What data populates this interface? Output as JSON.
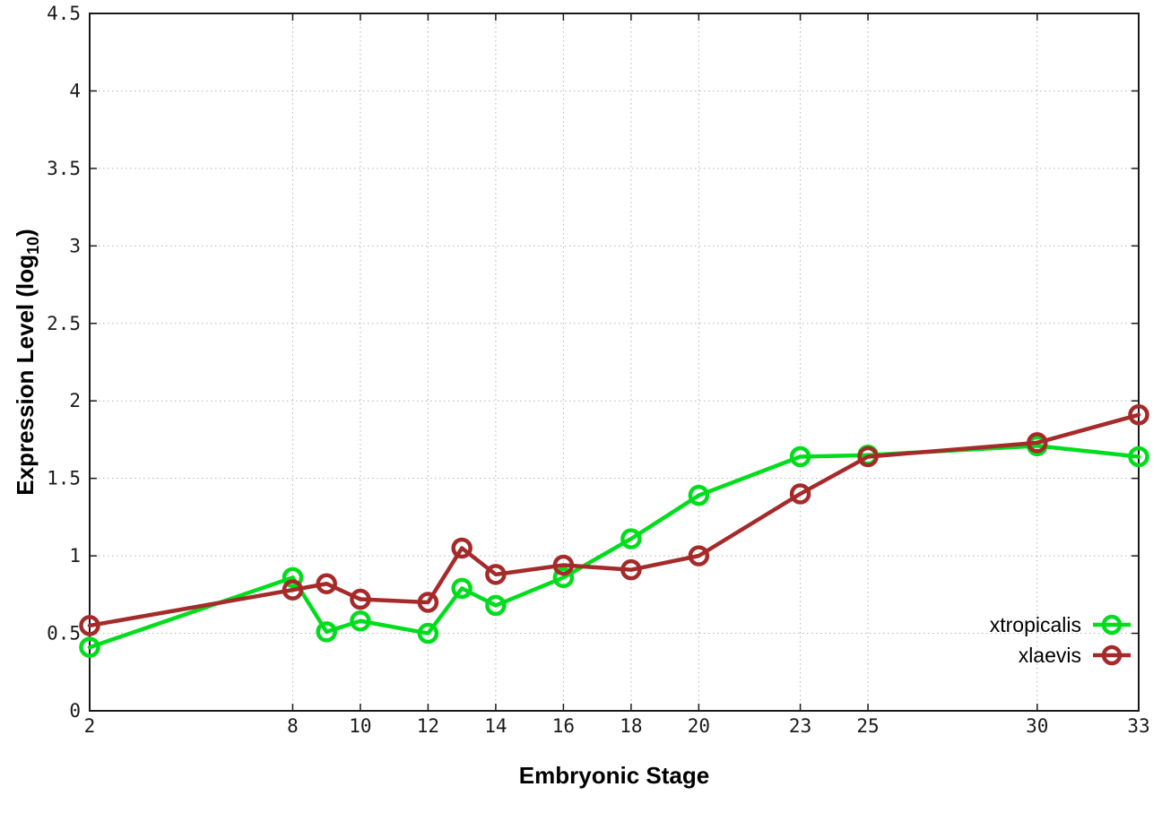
{
  "chart_data": {
    "type": "line",
    "title": "",
    "xlabel": "Embryonic Stage",
    "ylabel_main": "Expression Level (log",
    "ylabel_sub": "10",
    "ylabel_close": ")",
    "xlim": [
      2,
      33
    ],
    "ylim": [
      0,
      4.5
    ],
    "grid": "dotted",
    "legend_position": "inside-right-bottom",
    "x": [
      2,
      8,
      9,
      10,
      12,
      13,
      14,
      16,
      18,
      20,
      23,
      25,
      30,
      33
    ],
    "xticks": {
      "values": [
        2,
        8,
        10,
        12,
        14,
        16,
        18,
        20,
        23,
        25,
        30,
        33
      ],
      "labels": [
        "2",
        "8",
        "10",
        "12",
        "14",
        "16",
        "18",
        "20",
        "23",
        "25",
        "30",
        "33"
      ]
    },
    "yticks": {
      "values": [
        0,
        0.5,
        1,
        1.5,
        2,
        2.5,
        3,
        3.5,
        4,
        4.5
      ],
      "labels": [
        "0",
        "0.5",
        "1",
        "1.5",
        "2",
        "2.5",
        "3",
        "3.5",
        "4",
        "4.5"
      ]
    },
    "series": [
      {
        "name": "xtropicalis",
        "color": "#00dd1c",
        "values": [
          0.41,
          0.86,
          0.51,
          0.58,
          0.5,
          0.79,
          0.68,
          0.86,
          1.11,
          1.39,
          1.64,
          1.65,
          1.71,
          1.64
        ]
      },
      {
        "name": "xlaevis",
        "color": "#a52a2a",
        "values": [
          0.55,
          0.78,
          0.82,
          0.72,
          0.7,
          1.05,
          0.88,
          0.94,
          0.91,
          1.0,
          1.4,
          1.64,
          1.73,
          1.91
        ]
      }
    ],
    "colors": {
      "border": "#1a1a1a",
      "grid": "#b4b4b4",
      "tick_text": "#1a1a1a"
    }
  }
}
